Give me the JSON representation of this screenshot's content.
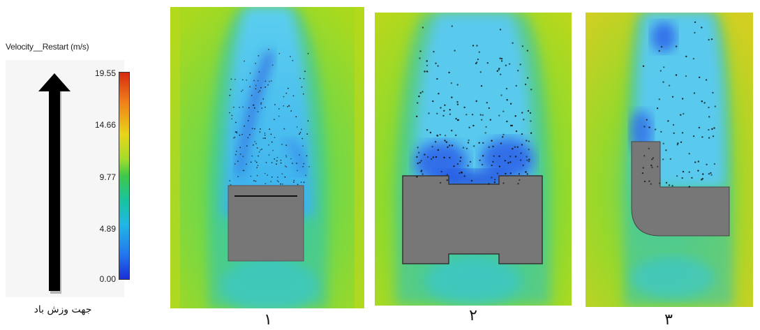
{
  "legend": {
    "title": "Velocity__Restart (m/s)",
    "ticks": [
      "19.55",
      "14.66",
      "9.77",
      "4.89",
      "0.00"
    ],
    "wind_label": "جهت وزش باد"
  },
  "panels": [
    {
      "number": "۱"
    },
    {
      "number": "۲"
    },
    {
      "number": "۳"
    }
  ],
  "colors": {
    "background_flow": "#8fe02a",
    "wake": "#27b7ea",
    "deep_wake": "#2a64e8",
    "obstacle": "#777777",
    "max": "#d62a12",
    "min": "#1b2fd6"
  }
}
